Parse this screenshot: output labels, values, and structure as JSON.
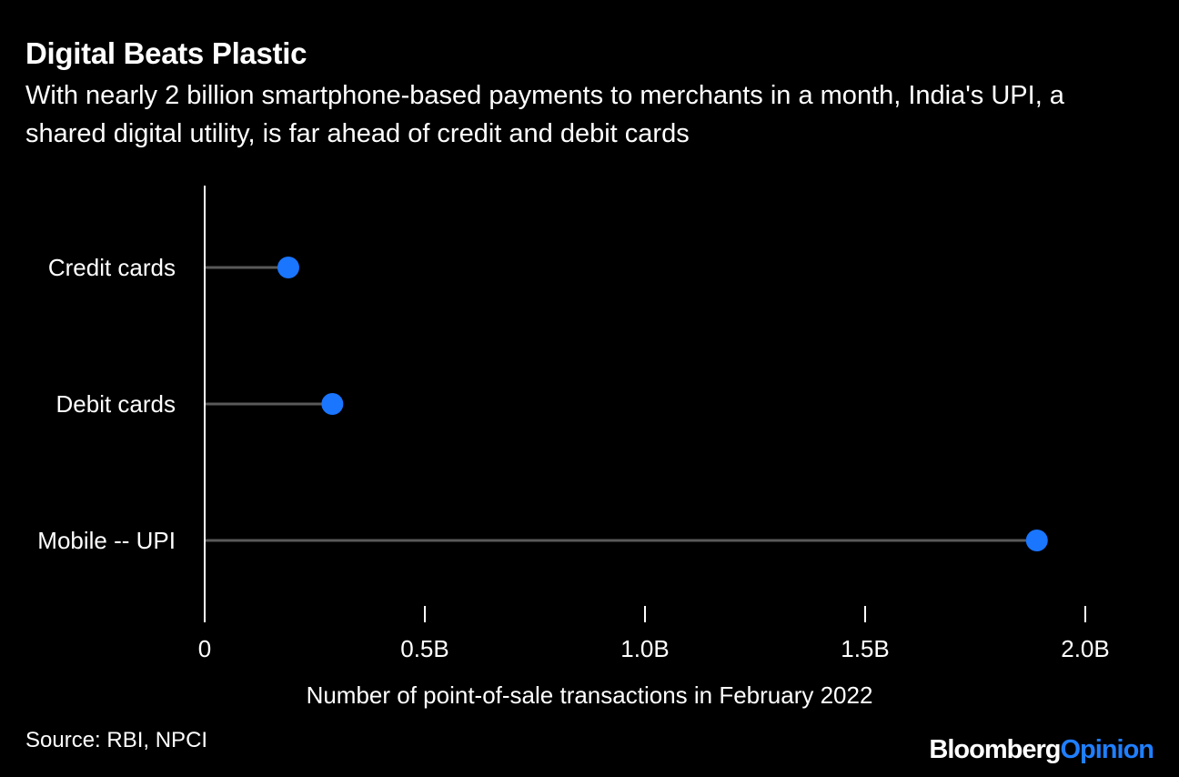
{
  "header": {
    "title": "Digital Beats Plastic",
    "subtitle": "With nearly 2 billion smartphone-based payments to merchants in a month, India's UPI, a shared digital utility, is far ahead of credit and debit cards"
  },
  "footer": {
    "source": "Source: RBI, NPCI",
    "brand_main": "Bloomberg",
    "brand_accent": "Opinion"
  },
  "colors": {
    "background": "#000000",
    "text": "#ffffff",
    "dot": "#1a75ff",
    "stem": "#595959",
    "axis": "#ffffff",
    "brand_accent": "#1f7fff"
  },
  "chart_data": {
    "type": "lollipop",
    "orientation": "horizontal",
    "categories": [
      "Credit cards",
      "Debit cards",
      "Mobile -- UPI"
    ],
    "values": [
      0.19,
      0.29,
      1.89
    ],
    "unit": "billion",
    "xlabel": "Number of point-of-sale transactions in February 2022",
    "xlim": [
      0,
      2.0
    ],
    "xticks": [
      0,
      0.5,
      1.0,
      1.5,
      2.0
    ],
    "xtick_labels": [
      "0",
      "0.5B",
      "1.0B",
      "1.5B",
      "2.0B"
    ],
    "grid": false
  }
}
